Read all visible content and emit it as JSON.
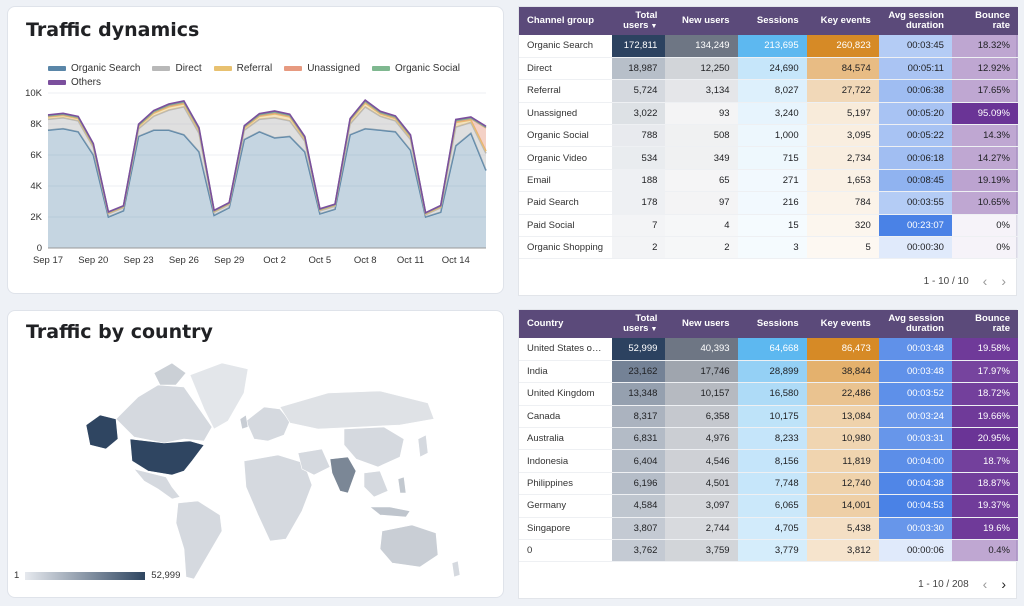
{
  "traffic_dynamics": {
    "title": "Traffic dynamics",
    "chart_data": {
      "type": "area",
      "title": "Traffic dynamics",
      "x": [
        "Sep 17",
        "Sep 18",
        "Sep 19",
        "Sep 20",
        "Sep 21",
        "Sep 22",
        "Sep 23",
        "Sep 24",
        "Sep 25",
        "Sep 26",
        "Sep 27",
        "Sep 28",
        "Sep 29",
        "Sep 30",
        "Oct 1",
        "Oct 2",
        "Oct 3",
        "Oct 4",
        "Oct 5",
        "Oct 6",
        "Oct 7",
        "Oct 8",
        "Oct 9",
        "Oct 10",
        "Oct 11",
        "Oct 12",
        "Oct 13",
        "Oct 14",
        "Oct 15",
        "Oct 16"
      ],
      "x_ticks": [
        "Sep 17",
        "Sep 20",
        "Sep 23",
        "Sep 26",
        "Sep 29",
        "Oct 2",
        "Oct 5",
        "Oct 8",
        "Oct 11",
        "Oct 14"
      ],
      "y_ticks": [
        "0",
        "2K",
        "4K",
        "6K",
        "8K",
        "10K"
      ],
      "ylim": [
        0,
        10000
      ],
      "stacked": true,
      "series": [
        {
          "name": "Organic Search",
          "color": "#5a86a8",
          "values": [
            7600,
            7700,
            7500,
            6000,
            2000,
            2400,
            7200,
            7600,
            7600,
            7300,
            6200,
            2100,
            2600,
            7000,
            7500,
            7100,
            7200,
            6200,
            2200,
            2500,
            7300,
            7700,
            7600,
            7500,
            6300,
            2000,
            2300,
            6600,
            7400,
            5000
          ]
        },
        {
          "name": "Direct",
          "color": "#b8b8b8",
          "values": [
            700,
            700,
            700,
            500,
            200,
            200,
            500,
            900,
            1300,
            1800,
            1200,
            200,
            200,
            600,
            800,
            1300,
            1000,
            700,
            200,
            200,
            700,
            1400,
            900,
            700,
            700,
            150,
            300,
            1200,
            700,
            1100
          ]
        },
        {
          "name": "Referral",
          "color": "#e8c170",
          "values": [
            150,
            150,
            150,
            100,
            50,
            50,
            150,
            200,
            200,
            200,
            200,
            50,
            50,
            150,
            200,
            250,
            250,
            150,
            50,
            50,
            200,
            250,
            150,
            150,
            150,
            50,
            50,
            300,
            150,
            150
          ]
        },
        {
          "name": "Unassigned",
          "color": "#e79a80",
          "values": [
            50,
            50,
            50,
            50,
            30,
            30,
            50,
            60,
            80,
            80,
            60,
            30,
            30,
            50,
            60,
            80,
            70,
            60,
            30,
            30,
            60,
            80,
            60,
            60,
            60,
            30,
            40,
            80,
            100,
            1500
          ]
        },
        {
          "name": "Organic Social",
          "color": "#7fb890",
          "values": [
            30,
            30,
            30,
            30,
            20,
            20,
            30,
            40,
            40,
            40,
            40,
            20,
            20,
            30,
            40,
            40,
            40,
            30,
            20,
            20,
            30,
            40,
            40,
            40,
            30,
            20,
            20,
            40,
            30,
            40
          ]
        },
        {
          "name": "Others",
          "color": "#7b4f9d",
          "values": [
            60,
            60,
            60,
            60,
            30,
            30,
            60,
            70,
            70,
            70,
            70,
            30,
            30,
            60,
            70,
            70,
            70,
            60,
            30,
            30,
            60,
            70,
            70,
            70,
            60,
            30,
            30,
            70,
            70,
            60
          ]
        }
      ]
    }
  },
  "traffic_by_country": {
    "title": "Traffic by country",
    "legend_min": "1",
    "legend_max": "52,999"
  },
  "channel_table": {
    "headers": [
      "Channel group",
      "Total users",
      "New users",
      "Sessions",
      "Key events",
      "Avg session duration",
      "Bounce rate"
    ],
    "rows": [
      [
        "Organic Search",
        "172,811",
        "134,249",
        "213,695",
        "260,823",
        "00:03:45",
        "18.32%"
      ],
      [
        "Direct",
        "18,987",
        "12,250",
        "24,690",
        "84,574",
        "00:05:11",
        "12.92%"
      ],
      [
        "Referral",
        "5,724",
        "3,134",
        "8,027",
        "27,722",
        "00:06:38",
        "17.65%"
      ],
      [
        "Unassigned",
        "3,022",
        "93",
        "3,240",
        "5,197",
        "00:05:20",
        "95.09%"
      ],
      [
        "Organic Social",
        "788",
        "508",
        "1,000",
        "3,095",
        "00:05:22",
        "14.3%"
      ],
      [
        "Organic Video",
        "534",
        "349",
        "715",
        "2,734",
        "00:06:18",
        "14.27%"
      ],
      [
        "Email",
        "188",
        "65",
        "271",
        "1,653",
        "00:08:45",
        "19.19%"
      ],
      [
        "Paid Search",
        "178",
        "97",
        "216",
        "784",
        "00:03:55",
        "10.65%"
      ],
      [
        "Paid Social",
        "7",
        "4",
        "15",
        "320",
        "00:23:07",
        "0%"
      ],
      [
        "Organic Shopping",
        "2",
        "2",
        "3",
        "5",
        "00:00:30",
        "0%"
      ]
    ],
    "pagination": "1 - 10 / 10"
  },
  "country_table": {
    "headers": [
      "Country",
      "Total users",
      "New users",
      "Sessions",
      "Key events",
      "Avg session duration",
      "Bounce rate"
    ],
    "rows": [
      [
        "United States of ...",
        "52,999",
        "40,393",
        "64,668",
        "86,473",
        "00:03:48",
        "19.58%"
      ],
      [
        "India",
        "23,162",
        "17,746",
        "28,899",
        "38,844",
        "00:03:48",
        "17.97%"
      ],
      [
        "United Kingdom",
        "13,348",
        "10,157",
        "16,580",
        "22,486",
        "00:03:52",
        "18.72%"
      ],
      [
        "Canada",
        "8,317",
        "6,358",
        "10,175",
        "13,084",
        "00:03:24",
        "19.66%"
      ],
      [
        "Australia",
        "6,831",
        "4,976",
        "8,233",
        "10,980",
        "00:03:31",
        "20.95%"
      ],
      [
        "Indonesia",
        "6,404",
        "4,546",
        "8,156",
        "11,819",
        "00:04:00",
        "18.7%"
      ],
      [
        "Philippines",
        "6,196",
        "4,501",
        "7,748",
        "12,740",
        "00:04:38",
        "18.87%"
      ],
      [
        "Germany",
        "4,584",
        "3,097",
        "6,065",
        "14,001",
        "00:04:53",
        "19.37%"
      ],
      [
        "Singapore",
        "3,807",
        "2,744",
        "4,705",
        "5,438",
        "00:03:30",
        "19.6%"
      ],
      [
        "0",
        "3,762",
        "3,759",
        "3,779",
        "3,812",
        "00:00:06",
        "0.4%"
      ]
    ],
    "pagination": "1 - 10 / 208"
  },
  "icons": {
    "prev": "chevron-left-icon",
    "next": "chevron-right-icon",
    "sort": "sort-down-icon"
  }
}
